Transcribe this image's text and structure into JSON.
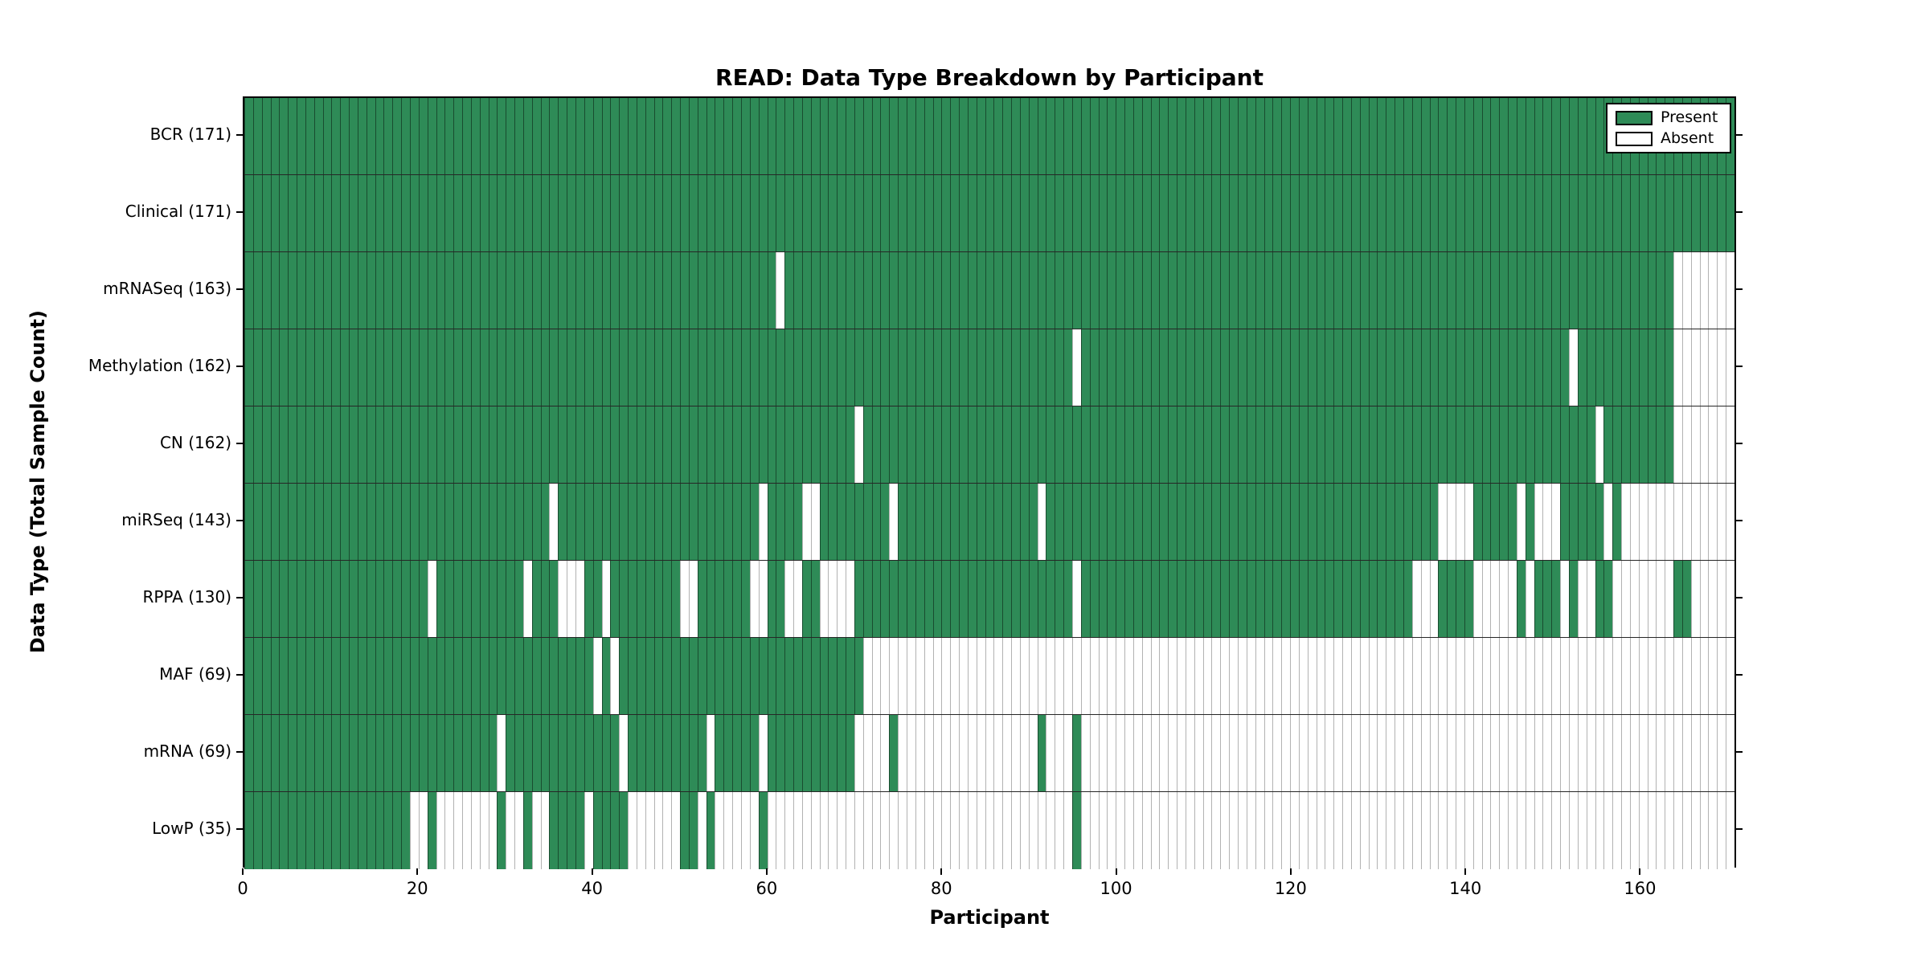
{
  "title": "READ: Data Type Breakdown by Participant",
  "x_axis": {
    "label": "Participant",
    "ticks": [
      0,
      20,
      40,
      60,
      80,
      100,
      120,
      140,
      160
    ]
  },
  "y_axis": {
    "label": "Data Type (Total Sample Count)"
  },
  "legend": {
    "present_label": "Present",
    "absent_label": "Absent"
  },
  "colors": {
    "present": "#2E8B57",
    "absent": "#FFFFFF"
  },
  "chart_data": {
    "type": "heatmap",
    "title": "READ: Data Type Breakdown by Participant",
    "xlabel": "Participant",
    "ylabel": "Data Type (Total Sample Count)",
    "n_participants": 171,
    "x_range": [
      0,
      171
    ],
    "legend_position": "upper right",
    "cell_states": [
      "present",
      "absent"
    ],
    "rows": [
      {
        "label": "BCR (171)",
        "name": "BCR",
        "total": 171,
        "absent_ranges": []
      },
      {
        "label": "Clinical (171)",
        "name": "Clinical",
        "total": 171,
        "absent_ranges": []
      },
      {
        "label": "mRNASeq (163)",
        "name": "mRNASeq",
        "total": 163,
        "absent_ranges": [
          [
            61,
            61
          ],
          [
            164,
            170
          ]
        ]
      },
      {
        "label": "Methylation (162)",
        "name": "Methylation",
        "total": 162,
        "absent_ranges": [
          [
            95,
            95
          ],
          [
            152,
            152
          ],
          [
            164,
            170
          ]
        ]
      },
      {
        "label": "CN (162)",
        "name": "CN",
        "total": 162,
        "absent_ranges": [
          [
            70,
            70
          ],
          [
            155,
            155
          ],
          [
            164,
            170
          ]
        ]
      },
      {
        "label": "miRSeq (143)",
        "name": "miRSeq",
        "total": 143,
        "absent_ranges": [
          [
            35,
            35
          ],
          [
            59,
            59
          ],
          [
            64,
            65
          ],
          [
            74,
            74
          ],
          [
            91,
            91
          ],
          [
            137,
            140
          ],
          [
            146,
            146
          ],
          [
            148,
            150
          ],
          [
            156,
            156
          ],
          [
            158,
            170
          ]
        ]
      },
      {
        "label": "RPPA (130)",
        "name": "RPPA",
        "total": 130,
        "absent_ranges": [
          [
            21,
            21
          ],
          [
            32,
            32
          ],
          [
            36,
            38
          ],
          [
            41,
            41
          ],
          [
            50,
            51
          ],
          [
            58,
            59
          ],
          [
            62,
            63
          ],
          [
            66,
            69
          ],
          [
            95,
            95
          ],
          [
            134,
            136
          ],
          [
            141,
            145
          ],
          [
            147,
            147
          ],
          [
            151,
            151
          ],
          [
            153,
            154
          ],
          [
            157,
            163
          ],
          [
            166,
            170
          ]
        ]
      },
      {
        "label": "MAF (69)",
        "name": "MAF",
        "total": 69,
        "absent_ranges": [
          [
            40,
            40
          ],
          [
            42,
            42
          ],
          [
            71,
            170
          ]
        ]
      },
      {
        "label": "mRNA (69)",
        "name": "mRNA",
        "total": 69,
        "absent_ranges": [
          [
            29,
            29
          ],
          [
            43,
            43
          ],
          [
            53,
            53
          ],
          [
            59,
            59
          ],
          [
            70,
            73
          ],
          [
            75,
            90
          ],
          [
            92,
            94
          ],
          [
            96,
            170
          ]
        ]
      },
      {
        "label": "LowP (35)",
        "name": "LowP",
        "total": 35,
        "absent_ranges": [
          [
            19,
            20
          ],
          [
            22,
            28
          ],
          [
            30,
            31
          ],
          [
            33,
            34
          ],
          [
            39,
            39
          ],
          [
            44,
            49
          ],
          [
            52,
            52
          ],
          [
            54,
            58
          ],
          [
            60,
            94
          ],
          [
            96,
            170
          ]
        ]
      }
    ]
  }
}
